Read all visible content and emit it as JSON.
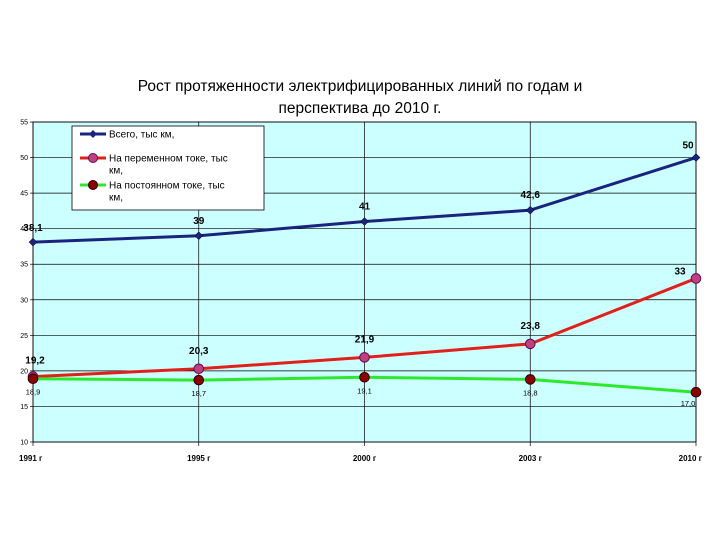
{
  "chart_data": {
    "type": "line",
    "title_lines": [
      "Рост протяженности электрифицированных линий по годам и",
      "перспектива до 2010 г."
    ],
    "categories": [
      "1991 г",
      "1995 г",
      "2000 г",
      "2003 г",
      "2010 г"
    ],
    "yticks": [
      "10",
      "15",
      "20",
      "25",
      "30",
      "35",
      "40",
      "45",
      "50",
      "55"
    ],
    "ylim": [
      10,
      55
    ],
    "grid": true,
    "legend_position": "top-left",
    "series": [
      {
        "name_lines": [
          "Всего, тыс км,"
        ],
        "values": [
          38.1,
          39,
          41,
          42.6,
          50
        ],
        "labels": [
          "38,1",
          "39",
          "41",
          "42,6",
          "50"
        ],
        "color": "#1a237e",
        "marker": "diamond"
      },
      {
        "name_lines": [
          "На переменном токе, тыс",
          "км,"
        ],
        "values": [
          19.2,
          20.3,
          21.9,
          23.8,
          33
        ],
        "labels": [
          "19,2",
          "20,3",
          "21,9",
          "23,8",
          "33"
        ],
        "color": "#e0201b",
        "marker": "circle-purple"
      },
      {
        "name_lines": [
          "На постоянном токе, тыс",
          "км,"
        ],
        "values": [
          18.9,
          18.7,
          19.1,
          18.8,
          17.0
        ],
        "labels": [
          "18,9",
          "18,7",
          "19,1",
          "18,8",
          "17,0"
        ],
        "color": "#2ee82e",
        "marker": "circle-darkred"
      }
    ],
    "colors": {
      "plot_bg": "#ccffff",
      "grid": "#000000"
    }
  }
}
